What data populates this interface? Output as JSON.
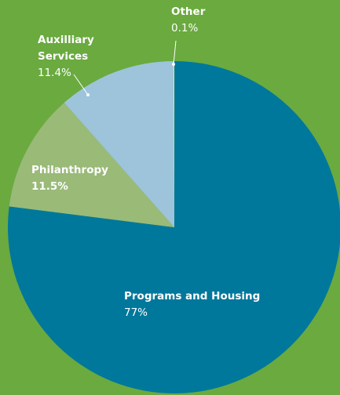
{
  "chart_data": {
    "type": "pie",
    "categories": [
      "Programs and Housing",
      "Philanthropy",
      "Auxilliary Services",
      "Other"
    ],
    "values": [
      77,
      11.5,
      11.4,
      0.1
    ],
    "value_labels": [
      "77%",
      "11.5%",
      "11.4%",
      "0.1%"
    ],
    "colors": [
      "#00789b",
      "#9aba78",
      "#9dc4da",
      "#e6e3a8"
    ],
    "background": "#6aaa3f"
  }
}
